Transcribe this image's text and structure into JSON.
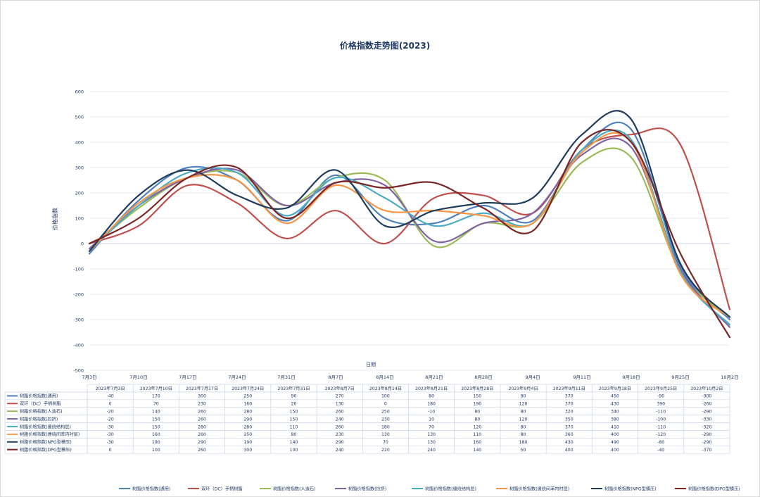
{
  "chart_data": {
    "type": "line",
    "title": "价格指数走势图(2023)",
    "ylabel": "价格指数",
    "xlabel": "日期",
    "ylim": [
      -500,
      600
    ],
    "yticks": [
      600,
      500,
      400,
      300,
      200,
      100,
      0,
      -100,
      -200,
      -300,
      -400,
      -500
    ],
    "grid": true,
    "legend": "bottom",
    "x_ticks": [
      "7月3日",
      "7月10日",
      "7月17日",
      "7月24日",
      "7月31日",
      "8月7日",
      "8月14日",
      "8月21日",
      "8月28日",
      "9月4日",
      "9月11日",
      "9月18日",
      "9月25日",
      "10月2日"
    ],
    "categories": [
      "2023年7月3日",
      "2023年7月10日",
      "2023年7月17日",
      "2023年7月24日",
      "2023年7月31日",
      "2023年8月7日",
      "2023年8月14日",
      "2023年8月21日",
      "2023年8月28日",
      "2023年9月4日",
      "2023年9月11日",
      "2023年9月18日",
      "2023年9月25日",
      "2023年10月2日"
    ],
    "series": [
      {
        "name": "树脂价格指数(通用)",
        "color": "#4f81bd",
        "values": [
          -40,
          170,
          300,
          250,
          90,
          270,
          100,
          80,
          150,
          90,
          370,
          450,
          -90,
          -300
        ]
      },
      {
        "name": "双环（DC）手柄树脂",
        "color": "#c0504d",
        "values": [
          0,
          70,
          230,
          160,
          20,
          130,
          0,
          180,
          190,
          120,
          370,
          430,
          390,
          -260
        ]
      },
      {
        "name": "树脂价格指数(人造石)",
        "color": "#9bbb59",
        "values": [
          -20,
          140,
          260,
          280,
          150,
          260,
          250,
          -10,
          80,
          80,
          320,
          340,
          -110,
          -290
        ]
      },
      {
        "name": "树脂价格指数(拉挤)",
        "color": "#8064a2",
        "values": [
          -20,
          150,
          260,
          290,
          150,
          240,
          230,
          10,
          80,
          120,
          350,
          380,
          -100,
          -330
        ]
      },
      {
        "name": "树脂价格指数(缠绕结构层)",
        "color": "#4bacc6",
        "values": [
          -30,
          150,
          280,
          280,
          110,
          260,
          180,
          70,
          120,
          80,
          370,
          410,
          -110,
          -320
        ]
      },
      {
        "name": "树脂价格指数(缠绕间苯内衬层)",
        "color": "#f79646",
        "values": [
          -30,
          160,
          260,
          250,
          80,
          230,
          130,
          130,
          110,
          80,
          360,
          400,
          -120,
          -290
        ]
      },
      {
        "name": "树脂价格指数(NPG型模压)",
        "color": "#1f3d5c",
        "values": [
          -30,
          190,
          290,
          190,
          140,
          290,
          70,
          130,
          160,
          180,
          430,
          490,
          -80,
          -290
        ]
      },
      {
        "name": "树脂价格指数(DPG型模压)",
        "color": "#7b2525",
        "values": [
          0,
          100,
          260,
          300,
          100,
          240,
          220,
          240,
          140,
          50,
          400,
          400,
          -40,
          -370
        ]
      }
    ]
  }
}
